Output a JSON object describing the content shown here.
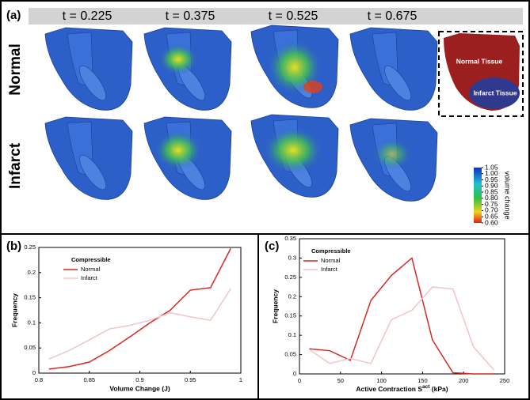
{
  "panel_a": {
    "label": "(a)",
    "times": [
      "t = 0.225",
      "t = 0.375",
      "t = 0.525",
      "t = 0.675"
    ],
    "rows": [
      "Normal",
      "Infarct"
    ],
    "inset_labels": [
      "Normal Tissue",
      "Infarct Tissue"
    ],
    "colorbar": {
      "label": "volume change",
      "lim": [
        0.6,
        1.05
      ],
      "ticks": [
        {
          "value": 1.05,
          "label": "1.05"
        },
        {
          "value": 1.0,
          "label": "1.00"
        },
        {
          "value": 0.95,
          "label": "0.95"
        },
        {
          "value": 0.9,
          "label": "0.90"
        },
        {
          "value": 0.85,
          "label": "0.85"
        },
        {
          "value": 0.8,
          "label": "0.80"
        },
        {
          "value": 0.75,
          "label": "0.75"
        },
        {
          "value": 0.7,
          "label": "0.70"
        },
        {
          "value": 0.65,
          "label": "0.65"
        },
        {
          "value": 0.6,
          "label": "0.60"
        }
      ]
    }
  },
  "chart_data": [
    {
      "type": "line",
      "panel": "(b)",
      "legend_title": "Compressible",
      "x_label": "Volume Change (J)",
      "y_label": "Frequency",
      "x": [
        0.81,
        0.83,
        0.85,
        0.87,
        0.89,
        0.91,
        0.93,
        0.95,
        0.97,
        0.99
      ],
      "series": [
        {
          "name": "Normal",
          "color": "#d42a22",
          "values": [
            0.008,
            0.013,
            0.022,
            0.045,
            0.072,
            0.1,
            0.125,
            0.165,
            0.17,
            0.248
          ]
        },
        {
          "name": "Infarct",
          "color": "#f4c4c4",
          "values": [
            0.028,
            0.045,
            0.066,
            0.088,
            0.095,
            0.105,
            0.12,
            0.112,
            0.105,
            0.168
          ]
        }
      ],
      "xlim": [
        0.8,
        1
      ],
      "xticks": [
        0.8,
        0.85,
        0.9,
        0.95,
        1
      ],
      "ylim": [
        0,
        0.25
      ],
      "yticks": [
        0,
        0.05,
        0.1,
        0.15,
        0.2,
        0.25
      ]
    },
    {
      "type": "line",
      "panel": "(c)",
      "legend_title": "Compressible",
      "x_label": {
        "text": "Active Contraction S",
        "sup": "act",
        "after": " (kPa)"
      },
      "y_label": "Frequency",
      "x": [
        12,
        37,
        62,
        87,
        112,
        137,
        162,
        187,
        212,
        237
      ],
      "series": [
        {
          "name": "Normal",
          "color": "#d42a22",
          "values": [
            0.065,
            0.06,
            0.035,
            0.19,
            0.255,
            0.3,
            0.088,
            0.003,
            0,
            0
          ]
        },
        {
          "name": "Infarct",
          "color": "#f4c4c4",
          "values": [
            0.063,
            0.027,
            0.04,
            0.027,
            0.14,
            0.165,
            0.225,
            0.22,
            0.07,
            0.01
          ]
        }
      ],
      "xlim": [
        0,
        250
      ],
      "xticks": [
        0,
        50,
        100,
        150,
        200,
        250
      ],
      "ylim": [
        0,
        0.35
      ],
      "yticks": [
        0,
        0.05,
        0.1,
        0.15,
        0.2,
        0.25,
        0.3,
        0.35
      ]
    }
  ]
}
